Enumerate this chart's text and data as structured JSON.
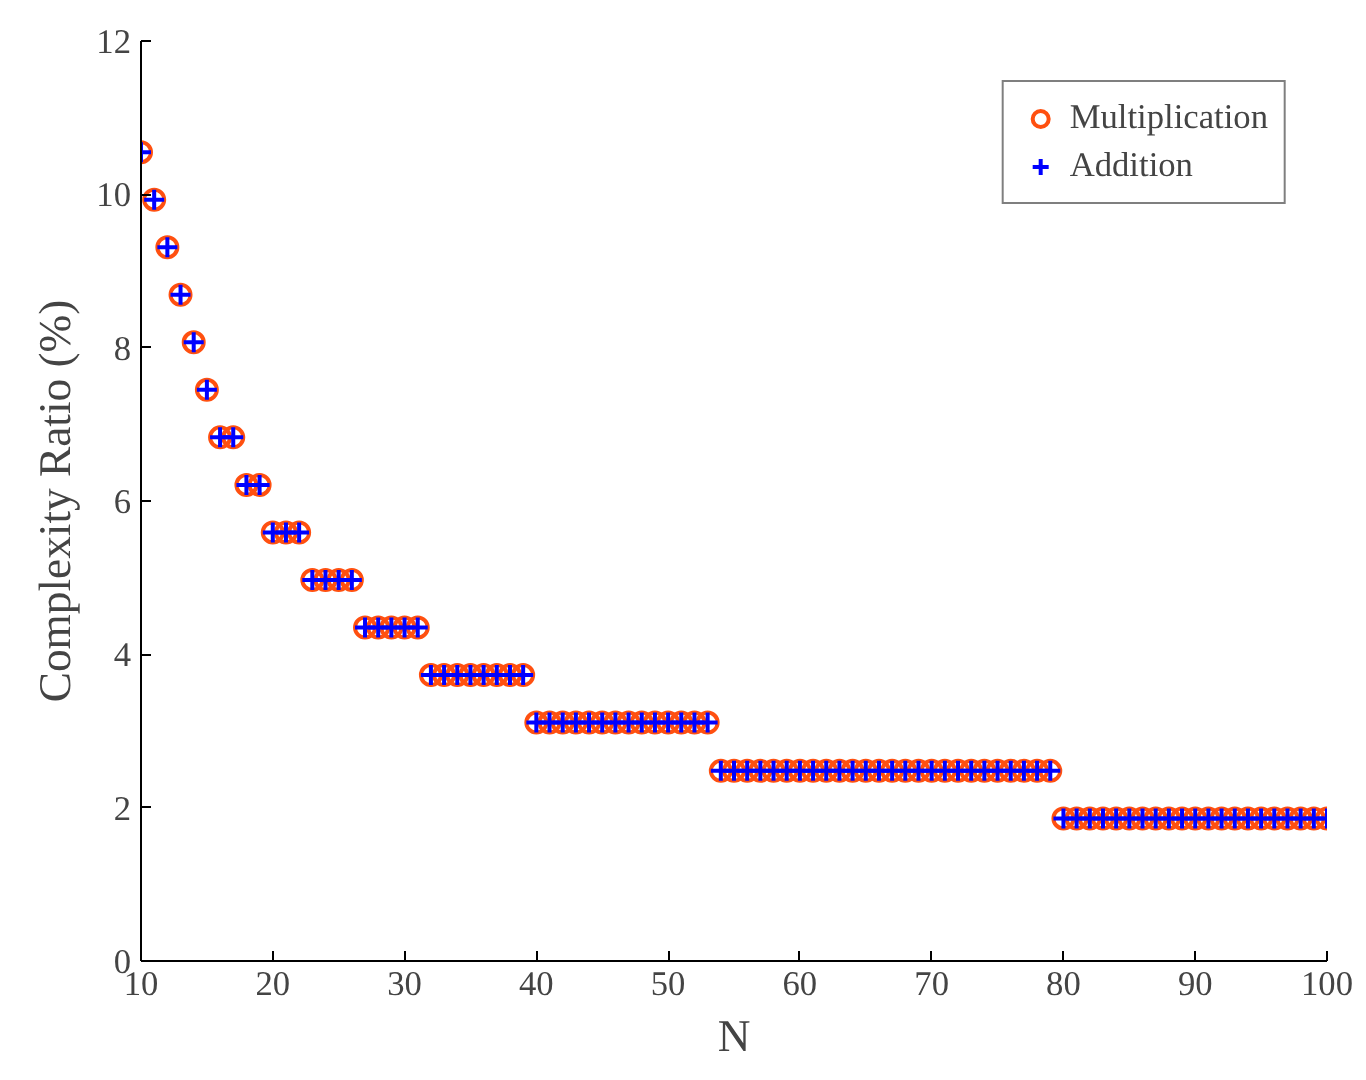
{
  "chart_data": {
    "type": "scatter",
    "xlabel": "N",
    "ylabel": "Complexity Ratio (%)",
    "x": [
      10,
      11,
      12,
      13,
      14,
      15,
      16,
      17,
      18,
      19,
      20,
      21,
      22,
      23,
      24,
      25,
      26,
      27,
      28,
      29,
      30,
      31,
      32,
      33,
      34,
      35,
      36,
      37,
      38,
      39,
      40,
      41,
      42,
      43,
      44,
      45,
      46,
      47,
      48,
      49,
      50,
      51,
      52,
      53,
      54,
      55,
      56,
      57,
      58,
      59,
      60,
      61,
      62,
      63,
      64,
      65,
      66,
      67,
      68,
      69,
      70,
      71,
      72,
      73,
      74,
      75,
      76,
      77,
      78,
      79,
      80,
      81,
      82,
      83,
      84,
      85,
      86,
      87,
      88,
      89,
      90,
      91,
      92,
      93,
      94,
      95,
      96,
      97,
      98,
      99,
      100
    ],
    "series": [
      {
        "name": "Multiplication",
        "color": "#ff5010",
        "marker": "circle",
        "values": [
          10.55,
          9.93,
          9.31,
          8.69,
          8.07,
          7.45,
          6.83,
          6.83,
          6.21,
          6.21,
          5.59,
          5.59,
          5.59,
          4.97,
          4.97,
          4.97,
          4.97,
          4.35,
          4.35,
          4.35,
          4.35,
          4.35,
          3.73,
          3.73,
          3.73,
          3.73,
          3.73,
          3.73,
          3.73,
          3.73,
          3.11,
          3.11,
          3.11,
          3.11,
          3.11,
          3.11,
          3.11,
          3.11,
          3.11,
          3.11,
          3.11,
          3.11,
          3.11,
          3.11,
          2.48,
          2.48,
          2.48,
          2.48,
          2.48,
          2.48,
          2.48,
          2.48,
          2.48,
          2.48,
          2.48,
          2.48,
          2.48,
          2.48,
          2.48,
          2.48,
          2.48,
          2.48,
          2.48,
          2.48,
          2.48,
          2.48,
          2.48,
          2.48,
          2.48,
          2.48,
          1.86,
          1.86,
          1.86,
          1.86,
          1.86,
          1.86,
          1.86,
          1.86,
          1.86,
          1.86,
          1.86,
          1.86,
          1.86,
          1.86,
          1.86,
          1.86,
          1.86,
          1.86,
          1.86,
          1.86,
          1.86
        ]
      },
      {
        "name": "Addition",
        "color": "#0000ff",
        "marker": "cross",
        "values": [
          10.55,
          9.93,
          9.31,
          8.69,
          8.07,
          7.45,
          6.83,
          6.83,
          6.21,
          6.21,
          5.59,
          5.59,
          5.59,
          4.97,
          4.97,
          4.97,
          4.97,
          4.35,
          4.35,
          4.35,
          4.35,
          4.35,
          3.73,
          3.73,
          3.73,
          3.73,
          3.73,
          3.73,
          3.73,
          3.73,
          3.11,
          3.11,
          3.11,
          3.11,
          3.11,
          3.11,
          3.11,
          3.11,
          3.11,
          3.11,
          3.11,
          3.11,
          3.11,
          3.11,
          2.48,
          2.48,
          2.48,
          2.48,
          2.48,
          2.48,
          2.48,
          2.48,
          2.48,
          2.48,
          2.48,
          2.48,
          2.48,
          2.48,
          2.48,
          2.48,
          2.48,
          2.48,
          2.48,
          2.48,
          2.48,
          2.48,
          2.48,
          2.48,
          2.48,
          2.48,
          1.86,
          1.86,
          1.86,
          1.86,
          1.86,
          1.86,
          1.86,
          1.86,
          1.86,
          1.86,
          1.86,
          1.86,
          1.86,
          1.86,
          1.86,
          1.86,
          1.86,
          1.86,
          1.86,
          1.86,
          1.86
        ]
      }
    ],
    "xlim": [
      10,
      100
    ],
    "ylim": [
      0,
      12
    ],
    "xticks": [
      10,
      20,
      30,
      40,
      50,
      60,
      70,
      80,
      90,
      100
    ],
    "yticks": [
      0,
      2,
      4,
      6,
      8,
      10,
      12
    ],
    "grid": false,
    "legend": "top right"
  }
}
